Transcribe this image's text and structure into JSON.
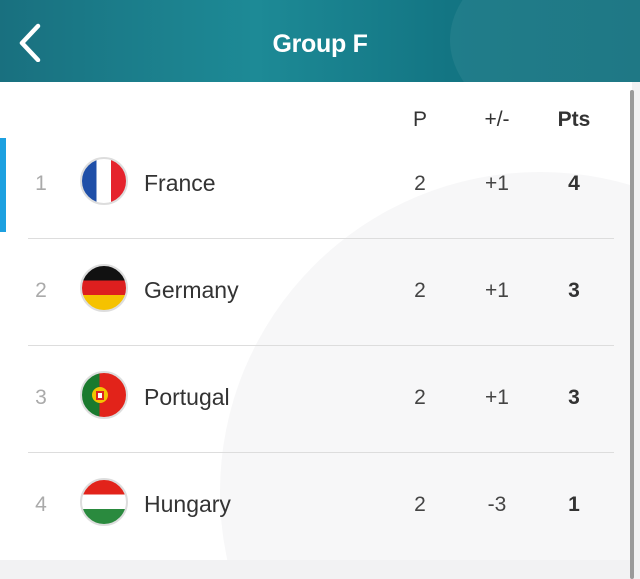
{
  "header": {
    "title": "Group F",
    "back_icon": "chevron-left-icon"
  },
  "columns": {
    "played": "P",
    "goal_diff": "+/-",
    "points": "Pts"
  },
  "accent": "#1da0e0",
  "rows": [
    {
      "rank": "1",
      "team": "France",
      "flag": "france-flag",
      "played": "2",
      "goal_diff": "+1",
      "points": "4"
    },
    {
      "rank": "2",
      "team": "Germany",
      "flag": "germany-flag",
      "played": "2",
      "goal_diff": "+1",
      "points": "3"
    },
    {
      "rank": "3",
      "team": "Portugal",
      "flag": "portugal-flag",
      "played": "2",
      "goal_diff": "+1",
      "points": "3"
    },
    {
      "rank": "4",
      "team": "Hungary",
      "flag": "hungary-flag",
      "played": "2",
      "goal_diff": "-3",
      "points": "1"
    }
  ]
}
